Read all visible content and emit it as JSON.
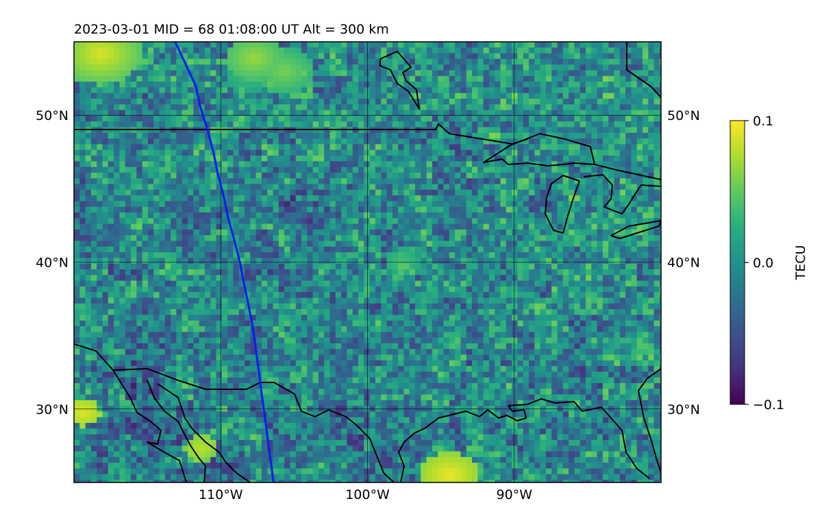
{
  "title": "2023-03-01  MID =  68    01:08:00  UT  Alt = 300 km",
  "map": {
    "lon_range": [
      -120,
      -80
    ],
    "lat_range": [
      25,
      55
    ],
    "lon_ticks": [
      {
        "lon": -110,
        "label": "110°W"
      },
      {
        "lon": -100,
        "label": "100°W"
      },
      {
        "lon": -90,
        "label": "90°W"
      }
    ],
    "lat_ticks": [
      {
        "lat": 30,
        "label": "30°N"
      },
      {
        "lat": 40,
        "label": "40°N"
      },
      {
        "lat": 50,
        "label": "50°N"
      }
    ],
    "grid": true,
    "field": "detrended TEC map, pixel grid ~0.4°, viridis colormap",
    "track_color": "#0a1cf0",
    "track": [
      [
        -113.1,
        55
      ],
      [
        -112.4,
        53.5
      ],
      [
        -111.7,
        52
      ],
      [
        -111.4,
        50.6
      ],
      [
        -110.9,
        49
      ],
      [
        -110.5,
        47.5
      ],
      [
        -110.2,
        46
      ],
      [
        -109.8,
        44.5
      ],
      [
        -109.5,
        43
      ],
      [
        -109.1,
        41.6
      ],
      [
        -108.7,
        40
      ],
      [
        -108.4,
        38.5
      ],
      [
        -108.1,
        37
      ],
      [
        -107.8,
        35.5
      ],
      [
        -107.6,
        34
      ],
      [
        -107.4,
        32.5
      ],
      [
        -107.2,
        31
      ],
      [
        -107.0,
        29.5
      ],
      [
        -106.8,
        28
      ],
      [
        -106.6,
        26.5
      ],
      [
        -106.4,
        25
      ]
    ]
  },
  "colorbar": {
    "label": "TECU",
    "cmap": "viridis",
    "vmin": -0.1,
    "vmax": 0.1,
    "ticks": [
      {
        "value": 0.1,
        "label": "0.1"
      },
      {
        "value": 0.0,
        "label": "0.0"
      },
      {
        "value": -0.1,
        "label": "−0.1"
      }
    ]
  }
}
